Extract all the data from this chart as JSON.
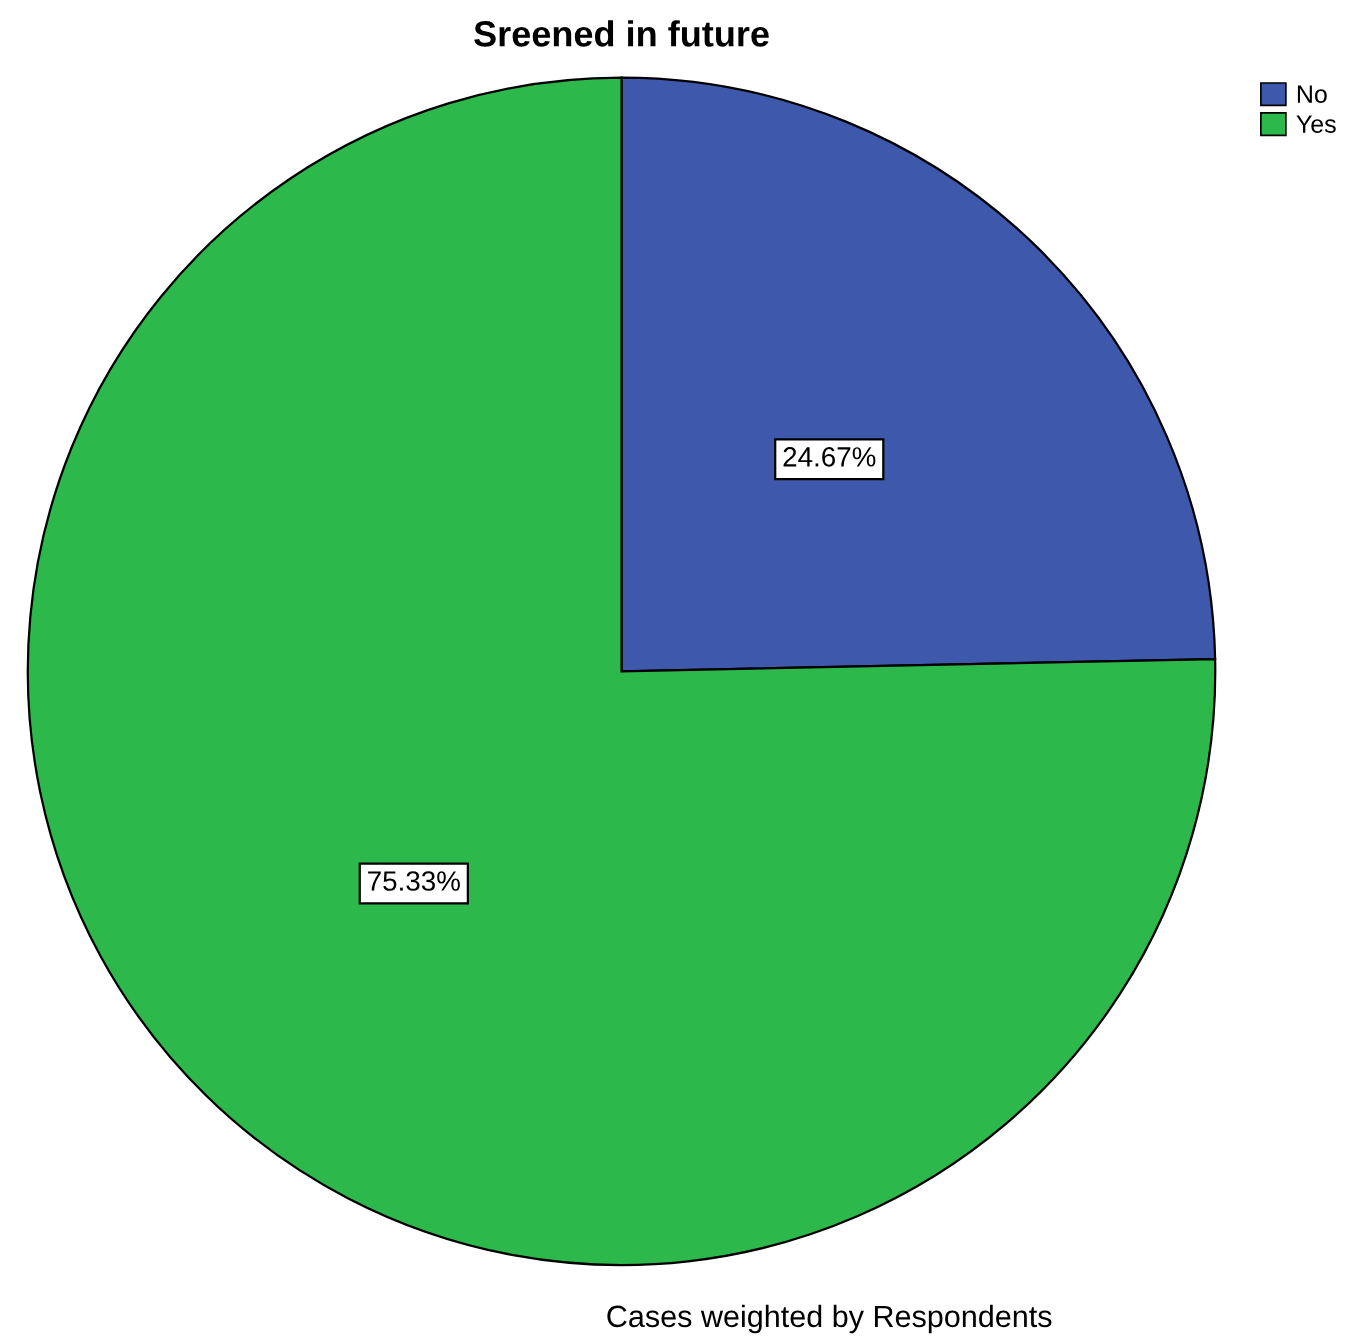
{
  "chart_data": {
    "type": "pie",
    "title": "Sreened in future",
    "categories": [
      "No",
      "Yes"
    ],
    "values": [
      24.67,
      75.33
    ],
    "colors": [
      "#3e58ac",
      "#2db84b"
    ],
    "value_labels": [
      "24.67%",
      "75.33%"
    ],
    "legend": "top right",
    "annotations": [
      "Cases weighted by Respondents"
    ]
  }
}
